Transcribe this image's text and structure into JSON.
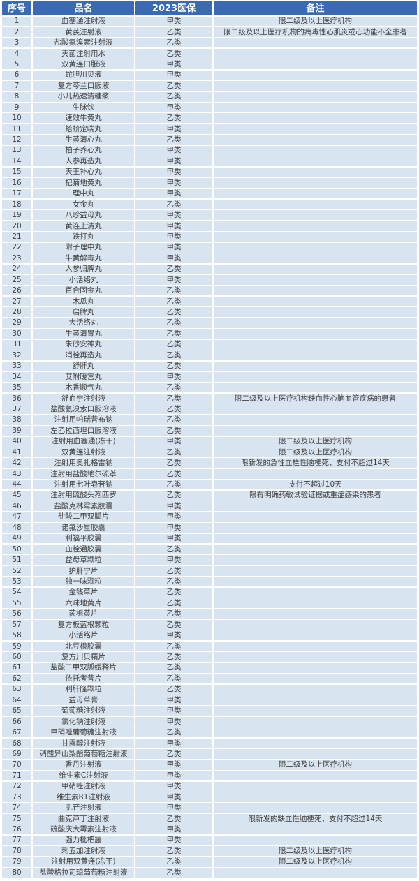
{
  "colors": {
    "header_bg": "#3a6bb2",
    "header_text": "#ffffff",
    "row_bg": "#d9e4f1",
    "text": "#3f3f3f"
  },
  "table": {
    "columns": [
      "序号",
      "品名",
      "2023医保",
      "备注"
    ],
    "rows": [
      [
        "1",
        "血塞通注射液",
        "甲类",
        "限二级及以上医疗机构"
      ],
      [
        "2",
        "黄芪注射液",
        "乙类",
        "限二级及以上医疗机构的病毒性心肌炎或心功能不全患者"
      ],
      [
        "3",
        "盐酸氨溴索注射液",
        "乙类",
        ""
      ],
      [
        "4",
        "灭菌注射用水",
        "乙类",
        ""
      ],
      [
        "5",
        "双黄连口服液",
        "甲类",
        ""
      ],
      [
        "6",
        "蛇胆川贝液",
        "甲类",
        ""
      ],
      [
        "7",
        "复方芩兰口服液",
        "乙类",
        ""
      ],
      [
        "8",
        "小儿热速清糖浆",
        "乙类",
        ""
      ],
      [
        "9",
        "生脉饮",
        "甲类",
        ""
      ],
      [
        "10",
        "速效牛黄丸",
        "乙类",
        ""
      ],
      [
        "11",
        "蛤蚧定喘丸",
        "甲类",
        ""
      ],
      [
        "12",
        "牛黄清心丸",
        "乙类",
        ""
      ],
      [
        "13",
        "柏子养心丸",
        "甲类",
        ""
      ],
      [
        "14",
        "人参再造丸",
        "甲类",
        ""
      ],
      [
        "15",
        "天王补心丸",
        "甲类",
        ""
      ],
      [
        "16",
        "杞菊地黄丸",
        "甲类",
        ""
      ],
      [
        "17",
        "理中丸",
        "甲类",
        ""
      ],
      [
        "18",
        "女金丸",
        "乙类",
        ""
      ],
      [
        "19",
        "八珍益母丸",
        "甲类",
        ""
      ],
      [
        "20",
        "黄连上清丸",
        "甲类",
        ""
      ],
      [
        "21",
        "跌打丸",
        "甲类",
        ""
      ],
      [
        "22",
        "附子理中丸",
        "甲类",
        ""
      ],
      [
        "23",
        "牛黄解毒丸",
        "甲类",
        ""
      ],
      [
        "24",
        "人参归脾丸",
        "乙类",
        ""
      ],
      [
        "25",
        "小活络丸",
        "甲类",
        ""
      ],
      [
        "26",
        "百合固金丸",
        "乙类",
        ""
      ],
      [
        "27",
        "木瓜丸",
        "乙类",
        ""
      ],
      [
        "28",
        "启脾丸",
        "乙类",
        ""
      ],
      [
        "29",
        "大活络丸",
        "乙类",
        ""
      ],
      [
        "30",
        "牛黄清胃丸",
        "乙类",
        ""
      ],
      [
        "31",
        "朱砂安神丸",
        "乙类",
        ""
      ],
      [
        "32",
        "消栓再造丸",
        "乙类",
        ""
      ],
      [
        "33",
        "舒肝丸",
        "乙类",
        ""
      ],
      [
        "34",
        "艾附暖宫丸",
        "甲类",
        ""
      ],
      [
        "35",
        "木香顺气丸",
        "乙类",
        ""
      ],
      [
        "36",
        "舒血宁注射液",
        "乙类",
        "限二级及以上医疗机构缺血性心脑血管疾病的患者"
      ],
      [
        "37",
        "盐酸氨溴索口服溶液",
        "乙类",
        ""
      ],
      [
        "38",
        "注射用帕瑞昔布钠",
        "乙类",
        ""
      ],
      [
        "39",
        "左乙拉西坦口服溶液",
        "乙类",
        ""
      ],
      [
        "40",
        "注射用血塞通(冻干)",
        "甲类",
        "限二级及以上医疗机构"
      ],
      [
        "41",
        "双黄连注射液",
        "乙类",
        "限二级及以上医疗机构"
      ],
      [
        "42",
        "注射用奥扎格雷钠",
        "乙类",
        "限新发的急性血栓性脑梗死，支付不超过14天"
      ],
      [
        "43",
        "注射用盐酸地尔硫䓬",
        "乙类",
        ""
      ],
      [
        "44",
        "注射用七叶皂苷钠",
        "乙类",
        "支付不超过10天"
      ],
      [
        "45",
        "注射用硫酸头孢匹罗",
        "乙类",
        "限有明确药敏试验证据或重症感染的患者"
      ],
      [
        "46",
        "盐酸克林霉素胶囊",
        "甲类",
        ""
      ],
      [
        "47",
        "盐酸二甲双胍片",
        "甲类",
        ""
      ],
      [
        "48",
        "诺氟沙星胶囊",
        "甲类",
        ""
      ],
      [
        "49",
        "利福平胶囊",
        "甲类",
        ""
      ],
      [
        "50",
        "血栓通胶囊",
        "乙类",
        ""
      ],
      [
        "51",
        "益母草颗粒",
        "甲类",
        ""
      ],
      [
        "52",
        "护肝宁片",
        "乙类",
        ""
      ],
      [
        "53",
        "独一味颗粒",
        "乙类",
        ""
      ],
      [
        "54",
        "金钱草片",
        "乙类",
        ""
      ],
      [
        "55",
        "六味地黄片",
        "乙类",
        ""
      ],
      [
        "56",
        "茵栀黄片",
        "乙类",
        ""
      ],
      [
        "57",
        "复方板蓝根颗粒",
        "乙类",
        ""
      ],
      [
        "58",
        "小活络片",
        "甲类",
        ""
      ],
      [
        "59",
        "北豆根胶囊",
        "乙类",
        ""
      ],
      [
        "60",
        "复方川贝精片",
        "乙类",
        ""
      ],
      [
        "61",
        "盐酸二甲双胍缓释片",
        "乙类",
        ""
      ],
      [
        "62",
        "依托考昔片",
        "乙类",
        ""
      ],
      [
        "63",
        "利肝隆颗粒",
        "乙类",
        ""
      ],
      [
        "64",
        "益母草膏",
        "甲类",
        ""
      ],
      [
        "65",
        "葡萄糖注射液",
        "甲类",
        ""
      ],
      [
        "66",
        "氯化钠注射液",
        "甲类",
        ""
      ],
      [
        "67",
        "甲硝唑葡萄糖注射液",
        "乙类",
        ""
      ],
      [
        "68",
        "甘露醇注射液",
        "甲类",
        ""
      ],
      [
        "69",
        "硝酸异山梨酯葡萄糖注射液",
        "乙类",
        ""
      ],
      [
        "70",
        "香丹注射液",
        "甲类",
        "限二级及以上医疗机构"
      ],
      [
        "71",
        "维生素C注射液",
        "甲类",
        ""
      ],
      [
        "72",
        "甲硝唑注射液",
        "甲类",
        ""
      ],
      [
        "73",
        "维生素B1注射液",
        "甲类",
        ""
      ],
      [
        "74",
        "肌苷注射液",
        "甲类",
        ""
      ],
      [
        "75",
        "曲克芦丁注射液",
        "乙类",
        "限新发的缺血性脑梗死，支付不超过14天"
      ],
      [
        "76",
        "硫酸庆大霉素注射液",
        "甲类",
        ""
      ],
      [
        "77",
        "强力枇杷露",
        "甲类",
        ""
      ],
      [
        "78",
        "刺五加注射液",
        "乙类",
        "限二级及以上医疗机构"
      ],
      [
        "79",
        "注射用双黄连(冻干)",
        "乙类",
        "限二级及以上医疗机构"
      ],
      [
        "80",
        "盐酸格拉司琼葡萄糖注射液",
        "乙类",
        ""
      ]
    ]
  }
}
